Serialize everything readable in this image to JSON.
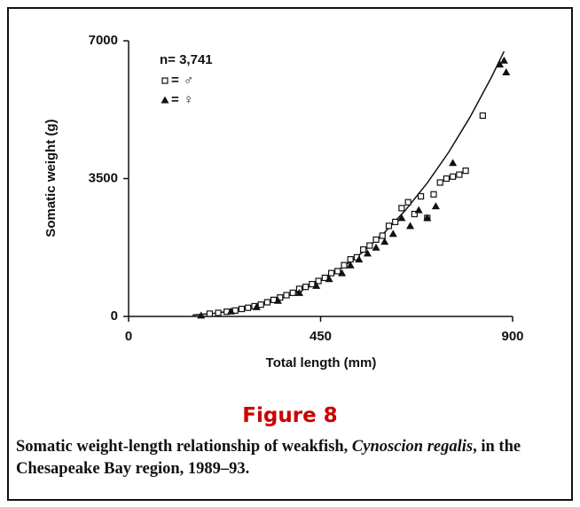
{
  "chart_data": {
    "type": "scatter",
    "y_label": "Somatic weight (g)",
    "x_label": "Total length (mm)",
    "annotation": "n= 3,741",
    "legend_separator": "=",
    "xlim": [
      0,
      900
    ],
    "xticks": [
      0,
      450,
      900
    ],
    "ylim": [
      0,
      7000
    ],
    "yticks": [
      0,
      3500,
      7000
    ],
    "grid": false,
    "series": [
      {
        "name": "♂",
        "color": "#111111",
        "marker": "square",
        "x": [
          190,
          210,
          230,
          250,
          265,
          280,
          295,
          310,
          325,
          340,
          355,
          370,
          385,
          400,
          415,
          430,
          445,
          460,
          475,
          490,
          505,
          520,
          535,
          550,
          565,
          580,
          595,
          610,
          625,
          640,
          655,
          670,
          685,
          700,
          715,
          730,
          745,
          760,
          775,
          790,
          830
        ],
        "values": [
          70,
          90,
          120,
          150,
          190,
          220,
          260,
          300,
          360,
          420,
          480,
          540,
          600,
          700,
          750,
          820,
          900,
          980,
          1100,
          1150,
          1300,
          1450,
          1500,
          1700,
          1800,
          1950,
          2050,
          2300,
          2400,
          2750,
          2900,
          2600,
          3050,
          2500,
          3100,
          3400,
          3500,
          3550,
          3600,
          3700,
          5100
        ]
      },
      {
        "name": "♀",
        "color": "#111111",
        "marker": "triangle",
        "x": [
          170,
          240,
          300,
          350,
          400,
          440,
          470,
          500,
          520,
          540,
          560,
          580,
          600,
          620,
          640,
          660,
          680,
          700,
          720,
          760,
          870,
          880,
          885
        ],
        "values": [
          25,
          130,
          240,
          400,
          600,
          780,
          950,
          1100,
          1300,
          1450,
          1600,
          1750,
          1900,
          2100,
          2500,
          2300,
          2700,
          2500,
          2800,
          3900,
          6400,
          6500,
          6200
        ]
      }
    ],
    "fit": {
      "color": "#111111",
      "x": [
        150,
        200,
        250,
        300,
        350,
        400,
        450,
        500,
        550,
        600,
        650,
        700,
        750,
        800,
        850,
        880
      ],
      "values": [
        33,
        79,
        154,
        267,
        423,
        632,
        900,
        1235,
        1643,
        2133,
        2712,
        3388,
        4167,
        5057,
        6066,
        6731
      ]
    }
  },
  "figure_label": "Figure 8",
  "caption": [
    "Somatic weight-length relationship of weakfish, ",
    "Cynoscion regalis",
    ", in the Chesapeake Bay region, 1989–93."
  ]
}
